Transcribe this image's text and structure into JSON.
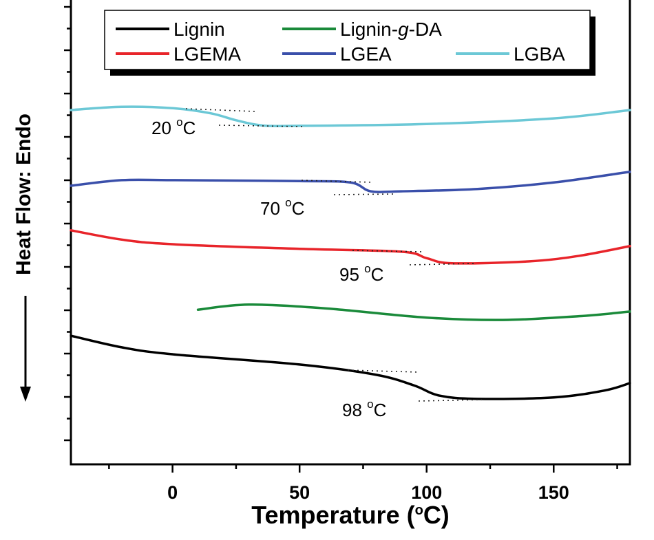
{
  "chart_data": {
    "type": "line",
    "title": "",
    "xlabel": "Temperature (",
    "xlabel_sup": "o",
    "xlabel_end": "C)",
    "ylabel": "Heat Flow: Endo",
    "ylabel_arrow": "down",
    "xlim": [
      -40,
      180
    ],
    "ylim": [
      0,
      100
    ],
    "xticks": [
      0,
      50,
      100,
      150
    ],
    "yticks_labeled": false,
    "grid": false,
    "legend_placement": "top",
    "series": [
      {
        "name": "Lignin",
        "color": "#000000",
        "x": [
          -40,
          -20,
          0,
          50,
          80,
          95,
          105,
          120,
          150,
          170,
          180
        ],
        "y": [
          27.7,
          25.2,
          23.7,
          21.5,
          19.3,
          17.0,
          14.8,
          14.1,
          14.4,
          15.9,
          17.5
        ]
      },
      {
        "name": "Lignin-g-DA",
        "name_parts": [
          "Lignin-",
          "g",
          "-DA"
        ],
        "color": "#1a8a3a",
        "x": [
          10,
          30,
          60,
          100,
          130,
          160,
          180
        ],
        "y": [
          33.3,
          34.4,
          33.6,
          31.6,
          31.1,
          31.9,
          32.9
        ]
      },
      {
        "name": "LGEMA",
        "color": "#e8242a",
        "x": [
          -40,
          -20,
          0,
          50,
          90,
          100,
          110,
          140,
          160,
          180
        ],
        "y": [
          50.4,
          48.4,
          47.4,
          46.4,
          45.8,
          44.4,
          43.3,
          43.7,
          44.9,
          47.0
        ]
      },
      {
        "name": "LGEA",
        "color": "#3a4faa",
        "x": [
          -40,
          -20,
          0,
          50,
          70,
          78,
          90,
          120,
          150,
          180
        ],
        "y": [
          60.0,
          61.2,
          61.2,
          61.0,
          60.7,
          58.8,
          58.8,
          59.3,
          60.7,
          63.0
        ]
      },
      {
        "name": "LGBA",
        "color": "#6cc8d6",
        "x": [
          -40,
          -20,
          0,
          15,
          25,
          35,
          50,
          100,
          150,
          180
        ],
        "y": [
          76.3,
          77.0,
          76.7,
          75.6,
          74.1,
          73.0,
          72.9,
          73.3,
          74.5,
          76.3
        ]
      }
    ],
    "annotations": [
      {
        "value": "20",
        "unit_sup": "o",
        "unit": "C",
        "series": "LGBA"
      },
      {
        "value": "70",
        "unit_sup": "o",
        "unit": "C",
        "series": "LGEA"
      },
      {
        "value": "95",
        "unit_sup": "o",
        "unit": "C",
        "series": "LGEMA"
      },
      {
        "value": "98",
        "unit_sup": "o",
        "unit": "C",
        "series": "Lignin"
      }
    ]
  }
}
